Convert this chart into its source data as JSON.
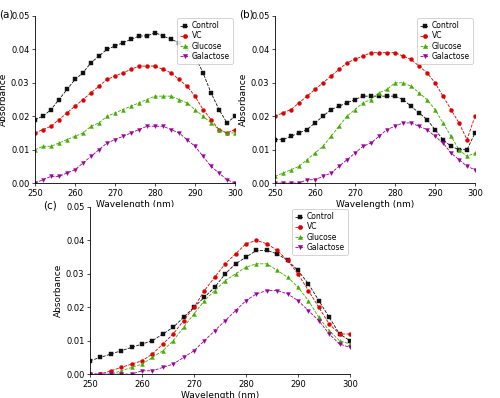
{
  "wavelengths": [
    250,
    252,
    254,
    256,
    258,
    260,
    262,
    264,
    266,
    268,
    270,
    272,
    274,
    276,
    278,
    280,
    282,
    284,
    286,
    288,
    290,
    292,
    294,
    296,
    298,
    300
  ],
  "panel_a": {
    "control": [
      0.019,
      0.02,
      0.022,
      0.025,
      0.028,
      0.031,
      0.033,
      0.036,
      0.038,
      0.04,
      0.041,
      0.042,
      0.043,
      0.044,
      0.044,
      0.045,
      0.044,
      0.043,
      0.042,
      0.04,
      0.038,
      0.033,
      0.027,
      0.022,
      0.018,
      0.02
    ],
    "vc": [
      0.015,
      0.016,
      0.017,
      0.019,
      0.021,
      0.023,
      0.025,
      0.027,
      0.029,
      0.031,
      0.032,
      0.033,
      0.034,
      0.035,
      0.035,
      0.035,
      0.034,
      0.033,
      0.031,
      0.029,
      0.026,
      0.022,
      0.019,
      0.016,
      0.015,
      0.016
    ],
    "glucose": [
      0.01,
      0.011,
      0.011,
      0.012,
      0.013,
      0.014,
      0.015,
      0.017,
      0.018,
      0.02,
      0.021,
      0.022,
      0.023,
      0.024,
      0.025,
      0.026,
      0.026,
      0.026,
      0.025,
      0.024,
      0.022,
      0.02,
      0.018,
      0.016,
      0.015,
      0.015
    ],
    "galactose": [
      0.0,
      0.001,
      0.002,
      0.002,
      0.003,
      0.004,
      0.006,
      0.008,
      0.01,
      0.012,
      0.013,
      0.014,
      0.015,
      0.016,
      0.017,
      0.017,
      0.017,
      0.016,
      0.015,
      0.013,
      0.011,
      0.008,
      0.005,
      0.003,
      0.001,
      0.0
    ]
  },
  "panel_b": {
    "control": [
      0.013,
      0.013,
      0.014,
      0.015,
      0.016,
      0.018,
      0.02,
      0.022,
      0.023,
      0.024,
      0.025,
      0.026,
      0.026,
      0.026,
      0.026,
      0.026,
      0.025,
      0.023,
      0.021,
      0.019,
      0.016,
      0.013,
      0.011,
      0.01,
      0.01,
      0.015
    ],
    "vc": [
      0.02,
      0.021,
      0.022,
      0.024,
      0.026,
      0.028,
      0.03,
      0.032,
      0.034,
      0.036,
      0.037,
      0.038,
      0.039,
      0.039,
      0.039,
      0.039,
      0.038,
      0.037,
      0.035,
      0.033,
      0.03,
      0.026,
      0.022,
      0.018,
      0.013,
      0.02
    ],
    "glucose": [
      0.002,
      0.003,
      0.004,
      0.005,
      0.007,
      0.009,
      0.011,
      0.014,
      0.017,
      0.02,
      0.022,
      0.024,
      0.025,
      0.027,
      0.028,
      0.03,
      0.03,
      0.029,
      0.027,
      0.025,
      0.022,
      0.018,
      0.014,
      0.01,
      0.008,
      0.009
    ],
    "galactose": [
      0.0,
      0.0,
      0.0,
      0.0,
      0.001,
      0.001,
      0.002,
      0.003,
      0.005,
      0.007,
      0.009,
      0.011,
      0.012,
      0.014,
      0.016,
      0.017,
      0.018,
      0.018,
      0.017,
      0.016,
      0.014,
      0.012,
      0.009,
      0.007,
      0.005,
      0.004
    ]
  },
  "panel_c": {
    "control": [
      0.004,
      0.005,
      0.006,
      0.007,
      0.008,
      0.009,
      0.01,
      0.012,
      0.014,
      0.017,
      0.02,
      0.023,
      0.026,
      0.03,
      0.033,
      0.035,
      0.037,
      0.037,
      0.036,
      0.034,
      0.031,
      0.027,
      0.022,
      0.017,
      0.012,
      0.01
    ],
    "vc": [
      0.0,
      0.0,
      0.001,
      0.002,
      0.003,
      0.004,
      0.006,
      0.009,
      0.012,
      0.016,
      0.02,
      0.025,
      0.029,
      0.033,
      0.036,
      0.039,
      0.04,
      0.039,
      0.037,
      0.034,
      0.03,
      0.025,
      0.02,
      0.015,
      0.012,
      0.012
    ],
    "glucose": [
      0.0,
      0.0,
      0.0,
      0.001,
      0.002,
      0.003,
      0.005,
      0.007,
      0.01,
      0.014,
      0.018,
      0.022,
      0.025,
      0.028,
      0.03,
      0.032,
      0.033,
      0.033,
      0.031,
      0.029,
      0.026,
      0.022,
      0.017,
      0.013,
      0.01,
      0.009
    ],
    "galactose": [
      0.0,
      0.0,
      0.0,
      0.0,
      0.0,
      0.001,
      0.001,
      0.002,
      0.003,
      0.005,
      0.007,
      0.01,
      0.013,
      0.016,
      0.019,
      0.022,
      0.024,
      0.025,
      0.025,
      0.024,
      0.022,
      0.019,
      0.016,
      0.012,
      0.009,
      0.008
    ]
  },
  "colors": {
    "control": "#111111",
    "vc": "#dd0000",
    "glucose": "#44aa00",
    "galactose": "#990099"
  },
  "markers": {
    "control": "s",
    "vc": "o",
    "glucose": "^",
    "galactose": "v"
  },
  "labels": [
    "Control",
    "VC",
    "Glucose",
    "Galactose"
  ],
  "xlabel": "Wavelength (nm)",
  "ylabel": "Absorbance",
  "xlim": [
    250,
    300
  ],
  "ylim": [
    0.0,
    0.05
  ],
  "yticks": [
    0.0,
    0.01,
    0.02,
    0.03,
    0.04,
    0.05
  ],
  "xticks": [
    250,
    260,
    270,
    280,
    290,
    300
  ],
  "panel_labels": [
    "(a)",
    "(b)",
    "(c)"
  ],
  "markersize": 2.8,
  "linewidth": 0.6,
  "fontsize_label": 6.5,
  "fontsize_tick": 6.0,
  "fontsize_legend": 5.5,
  "fontsize_panel": 7.5
}
